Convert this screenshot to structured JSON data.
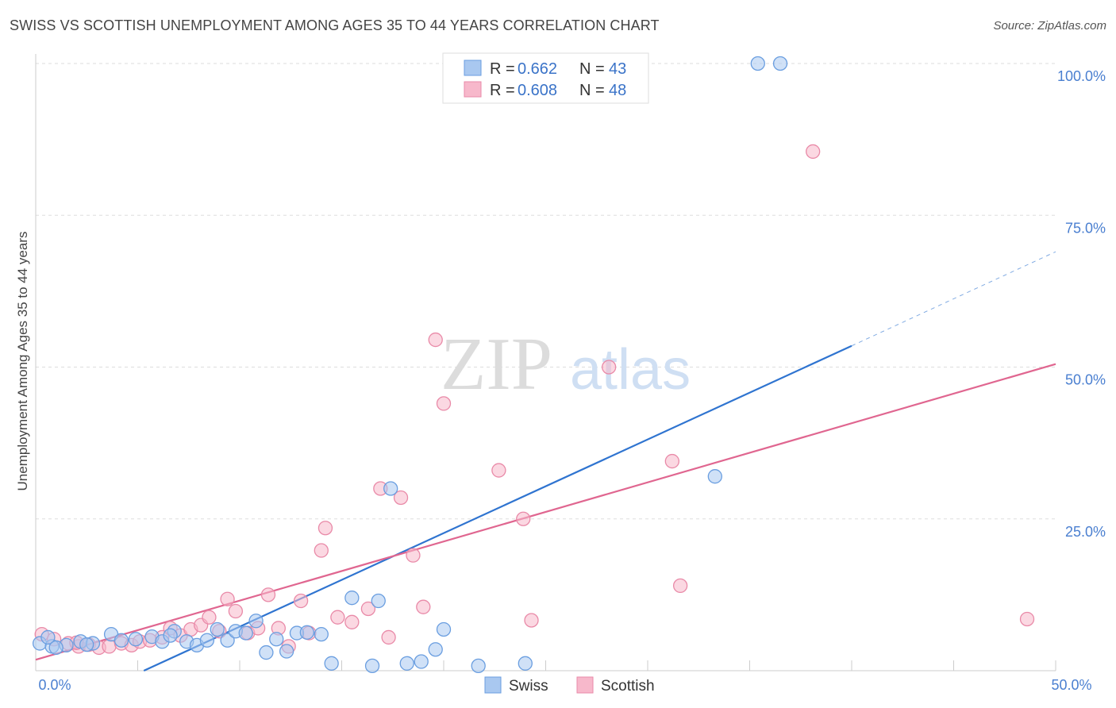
{
  "header": {
    "title": "SWISS VS SCOTTISH UNEMPLOYMENT AMONG AGES 35 TO 44 YEARS CORRELATION CHART",
    "source": "Source: ZipAtlas.com"
  },
  "watermark": {
    "zip": "ZIP",
    "atlas": "atlas"
  },
  "colors": {
    "swiss_fill": "#a9c8f0",
    "swiss_stroke": "#6a9ee0",
    "swiss_line": "#2f74d0",
    "scottish_fill": "#f7b8cb",
    "scottish_stroke": "#e98aa8",
    "scottish_line": "#e06690",
    "grid": "#dddddd",
    "tick": "#4a7fd0"
  },
  "legend": {
    "r_label": "R =",
    "n_label": "N =",
    "entries": [
      {
        "name": "Swiss",
        "r": "0.662",
        "n": "43"
      },
      {
        "name": "Scottish",
        "r": "0.608",
        "n": "48"
      }
    ]
  },
  "chart_data": {
    "type": "scatter",
    "title": "SWISS VS SCOTTISH UNEMPLOYMENT AMONG AGES 35 TO 44 YEARS CORRELATION CHART",
    "xlabel": "",
    "ylabel": "Unemployment Among Ages 35 to 44 years",
    "xlim": [
      0,
      50
    ],
    "ylim": [
      0,
      100
    ],
    "x_tick_labels": [
      "0.0%",
      "50.0%"
    ],
    "y_ticks": [
      25,
      50,
      75,
      100
    ],
    "y_tick_labels": [
      "25.0%",
      "50.0%",
      "75.0%",
      "100.0%"
    ],
    "grid": true,
    "legend_position": "top-center",
    "series": [
      {
        "name": "Swiss",
        "r": 0.662,
        "n": 43,
        "trend": {
          "x0": 5.3,
          "y0": 0,
          "x1": 40.0,
          "y1": 53.5,
          "dash_x_end": 50.0,
          "dash_y_end": 69.0
        },
        "points": [
          [
            0.2,
            4.5
          ],
          [
            0.8,
            4.0
          ],
          [
            1.5,
            4.2
          ],
          [
            2.2,
            4.8
          ],
          [
            2.8,
            4.5
          ],
          [
            3.7,
            6.0
          ],
          [
            4.2,
            5.0
          ],
          [
            4.9,
            5.2
          ],
          [
            5.7,
            5.6
          ],
          [
            6.2,
            4.8
          ],
          [
            6.8,
            6.5
          ],
          [
            7.4,
            4.8
          ],
          [
            7.9,
            4.2
          ],
          [
            8.4,
            5.0
          ],
          [
            8.9,
            6.8
          ],
          [
            9.4,
            5.0
          ],
          [
            9.8,
            6.5
          ],
          [
            10.3,
            6.2
          ],
          [
            10.8,
            8.2
          ],
          [
            11.3,
            3.0
          ],
          [
            11.8,
            5.2
          ],
          [
            12.3,
            3.2
          ],
          [
            12.8,
            6.2
          ],
          [
            13.3,
            6.3
          ],
          [
            14.0,
            6.0
          ],
          [
            14.5,
            1.2
          ],
          [
            15.5,
            12.0
          ],
          [
            16.5,
            0.8
          ],
          [
            16.8,
            11.5
          ],
          [
            17.4,
            30.0
          ],
          [
            18.2,
            1.2
          ],
          [
            18.9,
            1.5
          ],
          [
            19.6,
            3.5
          ],
          [
            20.0,
            6.8
          ],
          [
            21.7,
            0.8
          ],
          [
            24.0,
            1.2
          ],
          [
            33.3,
            32.0
          ],
          [
            35.4,
            100.0
          ],
          [
            36.5,
            100.0
          ],
          [
            0.6,
            5.5
          ],
          [
            1.0,
            3.8
          ],
          [
            2.5,
            4.3
          ],
          [
            6.6,
            5.8
          ]
        ]
      },
      {
        "name": "Scottish",
        "r": 0.608,
        "n": 48,
        "trend": {
          "x0": 0,
          "y0": 1.8,
          "x1": 50,
          "y1": 50.5
        },
        "points": [
          [
            0.3,
            6.0
          ],
          [
            0.9,
            5.2
          ],
          [
            1.6,
            4.5
          ],
          [
            2.1,
            4.0
          ],
          [
            2.6,
            4.3
          ],
          [
            3.1,
            3.8
          ],
          [
            3.6,
            4.0
          ],
          [
            4.2,
            4.5
          ],
          [
            4.7,
            4.2
          ],
          [
            5.1,
            4.8
          ],
          [
            5.6,
            5.0
          ],
          [
            6.2,
            5.5
          ],
          [
            6.6,
            7.0
          ],
          [
            7.1,
            5.8
          ],
          [
            7.6,
            6.8
          ],
          [
            8.1,
            7.5
          ],
          [
            8.5,
            8.8
          ],
          [
            9.0,
            6.5
          ],
          [
            9.4,
            11.8
          ],
          [
            9.8,
            9.8
          ],
          [
            10.4,
            6.2
          ],
          [
            10.9,
            7.0
          ],
          [
            11.4,
            12.5
          ],
          [
            11.9,
            7.0
          ],
          [
            12.4,
            4.0
          ],
          [
            13.0,
            11.5
          ],
          [
            13.4,
            6.2
          ],
          [
            14.2,
            23.5
          ],
          [
            14.8,
            8.8
          ],
          [
            15.5,
            8.0
          ],
          [
            16.3,
            10.2
          ],
          [
            16.9,
            30.0
          ],
          [
            17.3,
            5.5
          ],
          [
            17.9,
            28.5
          ],
          [
            18.5,
            19.0
          ],
          [
            19.0,
            10.5
          ],
          [
            19.6,
            54.5
          ],
          [
            20.0,
            44.0
          ],
          [
            22.7,
            33.0
          ],
          [
            23.9,
            25.0
          ],
          [
            24.3,
            8.3
          ],
          [
            28.1,
            50.0
          ],
          [
            31.2,
            34.5
          ],
          [
            31.6,
            14.0
          ],
          [
            38.1,
            85.5
          ],
          [
            48.6,
            8.5
          ],
          [
            14.0,
            19.8
          ],
          [
            2.0,
            4.6
          ]
        ]
      }
    ]
  }
}
